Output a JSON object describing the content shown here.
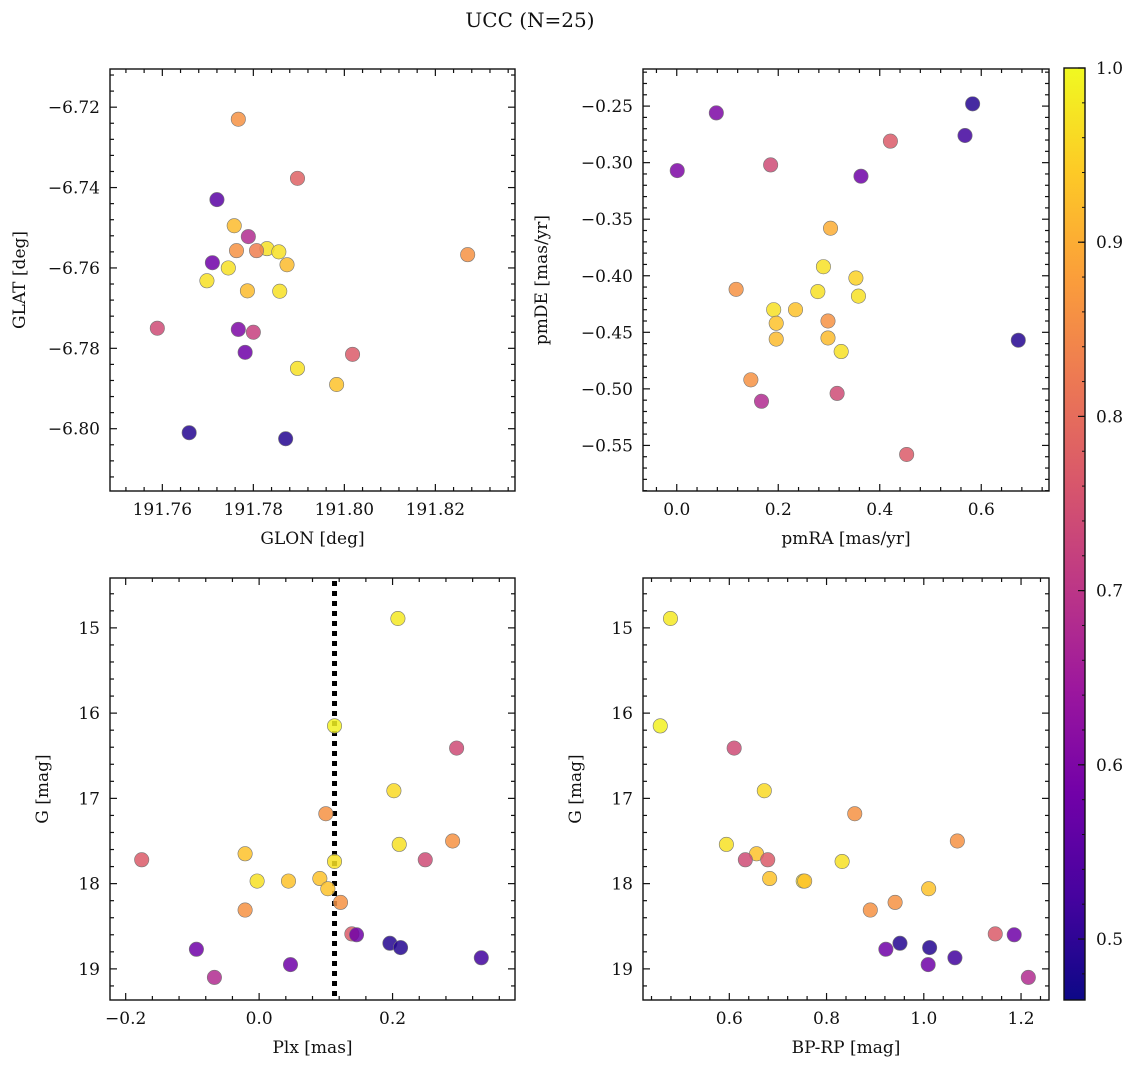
{
  "figure_title": "UCC (N=25)",
  "colorbar": {
    "range": [
      0.465,
      1.0
    ],
    "ticks": [
      0.5,
      0.6,
      0.7,
      0.8,
      0.9,
      1.0
    ],
    "tick_labels": [
      "0.5",
      "0.6",
      "0.7",
      "0.8",
      "0.9",
      "1.0"
    ],
    "colormap": "plasma",
    "colors": [
      "#0d0887",
      "#46039f",
      "#7201a8",
      "#9c179e",
      "#bd3786",
      "#d8576b",
      "#ed7953",
      "#fb9f3a",
      "#fdca26",
      "#f0f921"
    ]
  },
  "chart_data": [
    {
      "type": "scatter",
      "panel": "top-left",
      "xlabel": "GLON [deg]",
      "ylabel": "GLAT [deg]",
      "xlim": [
        191.7485,
        191.8375
      ],
      "ylim": [
        -6.8155,
        -6.7105
      ],
      "y_inverted": false,
      "xticks": [
        191.76,
        191.78,
        191.8,
        191.82
      ],
      "xtick_labels": [
        "191.76",
        "191.78",
        "191.80",
        "191.82"
      ],
      "yticks": [
        -6.72,
        -6.74,
        -6.76,
        -6.78,
        -6.8
      ],
      "ytick_labels": [
        "−6.72",
        "−6.74",
        "−6.76",
        "−6.78",
        "−6.80"
      ],
      "vline": null,
      "points": [
        {
          "x": 191.7767,
          "y": -6.723,
          "c": 0.86
        },
        {
          "x": 191.7897,
          "y": -6.7377,
          "c": 0.78
        },
        {
          "x": 191.772,
          "y": -6.743,
          "c": 0.55
        },
        {
          "x": 191.7758,
          "y": -6.7495,
          "c": 0.92
        },
        {
          "x": 191.7789,
          "y": -6.7522,
          "c": 0.68
        },
        {
          "x": 191.783,
          "y": -6.7552,
          "c": 0.97
        },
        {
          "x": 191.7763,
          "y": -6.7557,
          "c": 0.86
        },
        {
          "x": 191.7807,
          "y": -6.7557,
          "c": 0.83
        },
        {
          "x": 191.7856,
          "y": -6.756,
          "c": 0.97
        },
        {
          "x": 191.8271,
          "y": -6.7567,
          "c": 0.86
        },
        {
          "x": 191.771,
          "y": -6.7587,
          "c": 0.58
        },
        {
          "x": 191.7874,
          "y": -6.7592,
          "c": 0.92
        },
        {
          "x": 191.7745,
          "y": -6.76,
          "c": 0.97
        },
        {
          "x": 191.7698,
          "y": -6.7632,
          "c": 0.97
        },
        {
          "x": 191.7787,
          "y": -6.7657,
          "c": 0.92
        },
        {
          "x": 191.7858,
          "y": -6.7658,
          "c": 0.97
        },
        {
          "x": 191.7589,
          "y": -6.775,
          "c": 0.74
        },
        {
          "x": 191.7767,
          "y": -6.7753,
          "c": 0.6
        },
        {
          "x": 191.78,
          "y": -6.776,
          "c": 0.72
        },
        {
          "x": 191.8018,
          "y": -6.7815,
          "c": 0.77
        },
        {
          "x": 191.7782,
          "y": -6.781,
          "c": 0.58
        },
        {
          "x": 191.7897,
          "y": -6.785,
          "c": 0.97
        },
        {
          "x": 191.7983,
          "y": -6.789,
          "c": 0.93
        },
        {
          "x": 191.7659,
          "y": -6.801,
          "c": 0.49
        },
        {
          "x": 191.7871,
          "y": -6.8025,
          "c": 0.49
        }
      ]
    },
    {
      "type": "scatter",
      "panel": "top-right",
      "xlabel": "pmRA [mas/yr]",
      "ylabel": "pmDE [mas/yr]",
      "xlim": [
        -0.0665,
        0.7335
      ],
      "ylim": [
        -0.5903,
        -0.2172
      ],
      "y_inverted": false,
      "xticks": [
        0.0,
        0.2,
        0.4,
        0.6
      ],
      "xtick_labels": [
        "0.0",
        "0.2",
        "0.4",
        "0.6"
      ],
      "yticks": [
        -0.25,
        -0.3,
        -0.35,
        -0.4,
        -0.45,
        -0.5,
        -0.55
      ],
      "ytick_labels": [
        "−0.25",
        "−0.30",
        "−0.35",
        "−0.40",
        "−0.45",
        "−0.50",
        "−0.55"
      ],
      "vline": null,
      "points": [
        {
          "x": 0.583,
          "y": -0.248,
          "c": 0.49
        },
        {
          "x": 0.078,
          "y": -0.256,
          "c": 0.6
        },
        {
          "x": 0.568,
          "y": -0.276,
          "c": 0.52
        },
        {
          "x": 0.421,
          "y": -0.281,
          "c": 0.77
        },
        {
          "x": 0.185,
          "y": -0.302,
          "c": 0.74
        },
        {
          "x": 0.001,
          "y": -0.307,
          "c": 0.6
        },
        {
          "x": 0.363,
          "y": -0.312,
          "c": 0.58
        },
        {
          "x": 0.303,
          "y": -0.358,
          "c": 0.9
        },
        {
          "x": 0.289,
          "y": -0.392,
          "c": 0.97
        },
        {
          "x": 0.353,
          "y": -0.402,
          "c": 0.95
        },
        {
          "x": 0.117,
          "y": -0.412,
          "c": 0.86
        },
        {
          "x": 0.278,
          "y": -0.414,
          "c": 0.97
        },
        {
          "x": 0.358,
          "y": -0.418,
          "c": 0.97
        },
        {
          "x": 0.191,
          "y": -0.43,
          "c": 0.97
        },
        {
          "x": 0.234,
          "y": -0.43,
          "c": 0.93
        },
        {
          "x": 0.298,
          "y": -0.44,
          "c": 0.86
        },
        {
          "x": 0.196,
          "y": -0.442,
          "c": 0.93
        },
        {
          "x": 0.298,
          "y": -0.455,
          "c": 0.92
        },
        {
          "x": 0.196,
          "y": -0.456,
          "c": 0.92
        },
        {
          "x": 0.673,
          "y": -0.457,
          "c": 0.49
        },
        {
          "x": 0.324,
          "y": -0.467,
          "c": 0.97
        },
        {
          "x": 0.146,
          "y": -0.492,
          "c": 0.86
        },
        {
          "x": 0.316,
          "y": -0.504,
          "c": 0.74
        },
        {
          "x": 0.167,
          "y": -0.511,
          "c": 0.68
        },
        {
          "x": 0.453,
          "y": -0.558,
          "c": 0.77
        }
      ]
    },
    {
      "type": "scatter",
      "panel": "bottom-left",
      "xlabel": "Plx [mas]",
      "ylabel": "G [mag]",
      "xlim": [
        -0.2235,
        0.3835
      ],
      "ylim": [
        14.415,
        19.365
      ],
      "y_inverted": true,
      "xticks": [
        -0.2,
        0.0,
        0.2
      ],
      "xtick_labels": [
        "−0.2",
        "0.0",
        "0.2"
      ],
      "yticks": [
        15,
        16,
        17,
        18,
        19
      ],
      "ytick_labels": [
        "15",
        "16",
        "17",
        "18",
        "19"
      ],
      "vline": {
        "x": 0.113,
        "style": "dotted"
      },
      "points": [
        {
          "x": 0.208,
          "y": 14.89,
          "c": 0.98
        },
        {
          "x": 0.113,
          "y": 16.15,
          "c": 0.99
        },
        {
          "x": 0.296,
          "y": 16.41,
          "c": 0.74
        },
        {
          "x": 0.202,
          "y": 16.91,
          "c": 0.96
        },
        {
          "x": 0.1,
          "y": 17.18,
          "c": 0.86
        },
        {
          "x": 0.29,
          "y": 17.5,
          "c": 0.86
        },
        {
          "x": 0.21,
          "y": 17.54,
          "c": 0.97
        },
        {
          "x": -0.176,
          "y": 17.72,
          "c": 0.77
        },
        {
          "x": -0.021,
          "y": 17.65,
          "c": 0.93
        },
        {
          "x": 0.249,
          "y": 17.72,
          "c": 0.74
        },
        {
          "x": 0.113,
          "y": 17.74,
          "c": 0.97
        },
        {
          "x": -0.003,
          "y": 17.97,
          "c": 0.97
        },
        {
          "x": 0.044,
          "y": 17.97,
          "c": 0.93
        },
        {
          "x": 0.091,
          "y": 17.94,
          "c": 0.93
        },
        {
          "x": 0.103,
          "y": 18.06,
          "c": 0.93
        },
        {
          "x": -0.021,
          "y": 18.31,
          "c": 0.86
        },
        {
          "x": 0.122,
          "y": 18.22,
          "c": 0.86
        },
        {
          "x": 0.139,
          "y": 18.59,
          "c": 0.77
        },
        {
          "x": 0.146,
          "y": 18.6,
          "c": 0.58
        },
        {
          "x": 0.196,
          "y": 18.7,
          "c": 0.49
        },
        {
          "x": 0.212,
          "y": 18.75,
          "c": 0.49
        },
        {
          "x": -0.094,
          "y": 18.77,
          "c": 0.58
        },
        {
          "x": 0.333,
          "y": 18.87,
          "c": 0.52
        },
        {
          "x": 0.047,
          "y": 18.95,
          "c": 0.58
        },
        {
          "x": -0.067,
          "y": 19.1,
          "c": 0.68
        }
      ]
    },
    {
      "type": "scatter",
      "panel": "bottom-right",
      "xlabel": "BP-RP [mag]",
      "ylabel": "G [mag]",
      "xlim": [
        0.4225,
        1.2575
      ],
      "ylim": [
        14.415,
        19.365
      ],
      "y_inverted": true,
      "xticks": [
        0.6,
        0.8,
        1.0,
        1.2
      ],
      "xtick_labels": [
        "0.6",
        "0.8",
        "1.0",
        "1.2"
      ],
      "yticks": [
        15,
        16,
        17,
        18,
        19
      ],
      "ytick_labels": [
        "15",
        "16",
        "17",
        "18",
        "19"
      ],
      "vline": null,
      "points": [
        {
          "x": 0.479,
          "y": 14.89,
          "c": 0.98
        },
        {
          "x": 0.458,
          "y": 16.15,
          "c": 0.99
        },
        {
          "x": 0.61,
          "y": 16.41,
          "c": 0.74
        },
        {
          "x": 0.672,
          "y": 16.91,
          "c": 0.96
        },
        {
          "x": 0.858,
          "y": 17.18,
          "c": 0.86
        },
        {
          "x": 1.069,
          "y": 17.5,
          "c": 0.86
        },
        {
          "x": 0.594,
          "y": 17.54,
          "c": 0.97
        },
        {
          "x": 0.656,
          "y": 17.65,
          "c": 0.93
        },
        {
          "x": 0.633,
          "y": 17.72,
          "c": 0.74
        },
        {
          "x": 0.679,
          "y": 17.72,
          "c": 0.77
        },
        {
          "x": 0.832,
          "y": 17.74,
          "c": 0.97
        },
        {
          "x": 0.683,
          "y": 17.94,
          "c": 0.93
        },
        {
          "x": 0.752,
          "y": 17.97,
          "c": 0.97
        },
        {
          "x": 0.755,
          "y": 17.97,
          "c": 0.93
        },
        {
          "x": 1.01,
          "y": 18.06,
          "c": 0.93
        },
        {
          "x": 0.941,
          "y": 18.22,
          "c": 0.86
        },
        {
          "x": 0.89,
          "y": 18.31,
          "c": 0.86
        },
        {
          "x": 1.147,
          "y": 18.59,
          "c": 0.77
        },
        {
          "x": 1.186,
          "y": 18.6,
          "c": 0.58
        },
        {
          "x": 0.951,
          "y": 18.7,
          "c": 0.49
        },
        {
          "x": 1.012,
          "y": 18.75,
          "c": 0.49
        },
        {
          "x": 0.922,
          "y": 18.77,
          "c": 0.58
        },
        {
          "x": 1.064,
          "y": 18.87,
          "c": 0.52
        },
        {
          "x": 1.009,
          "y": 18.95,
          "c": 0.58
        },
        {
          "x": 1.215,
          "y": 19.1,
          "c": 0.68
        }
      ]
    }
  ]
}
